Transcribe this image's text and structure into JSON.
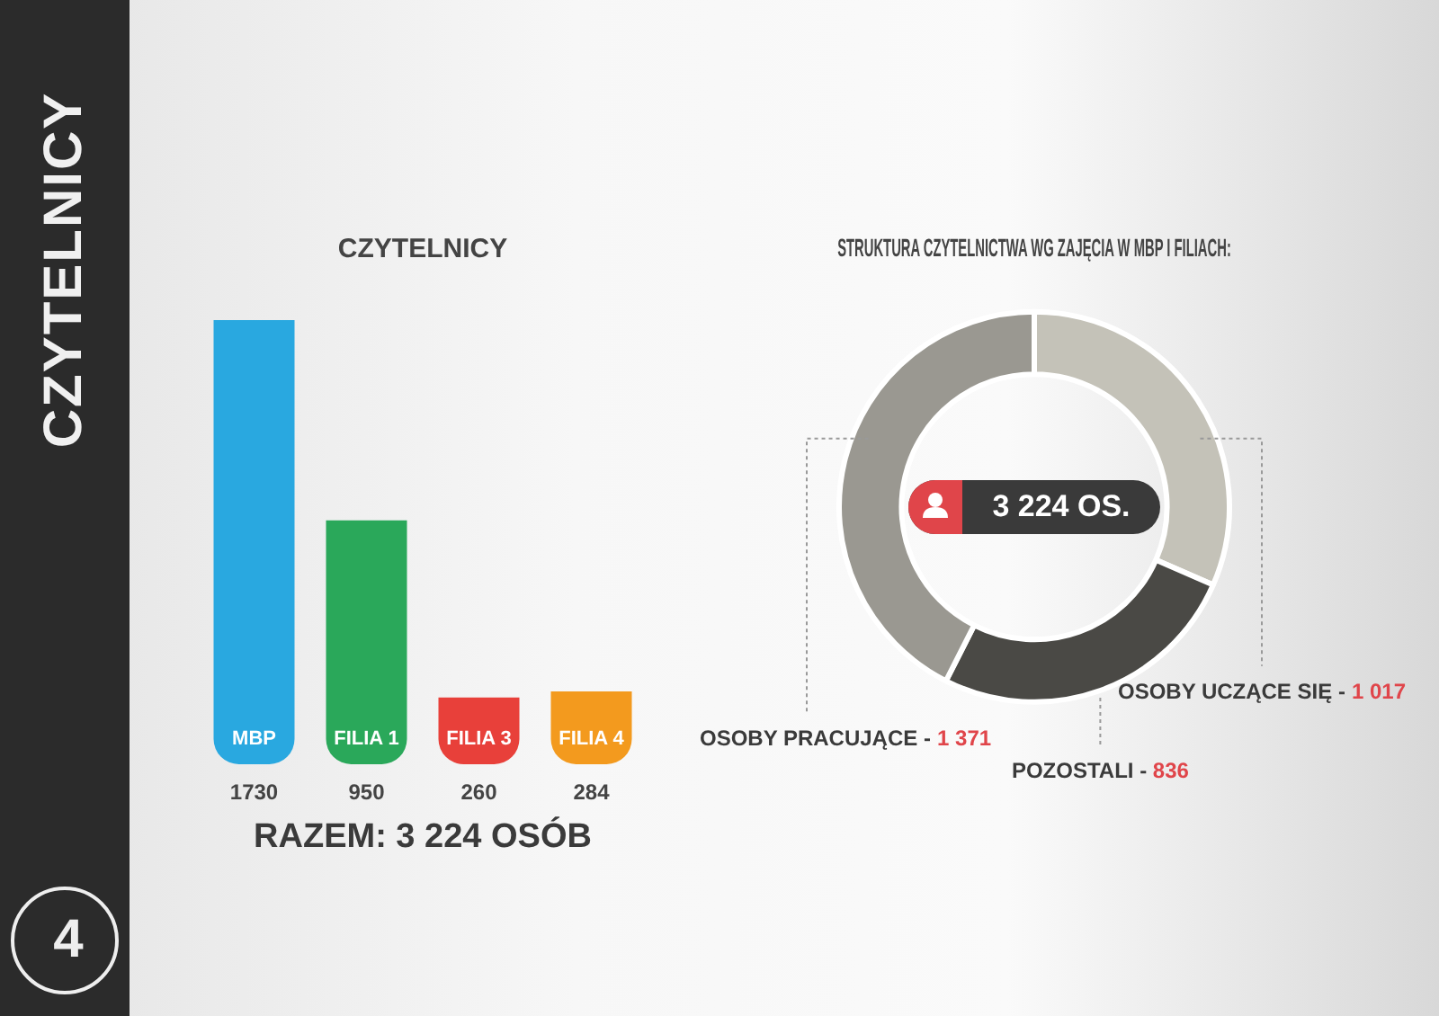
{
  "chart_data": [
    {
      "type": "bar",
      "title": "CZYTELNICY",
      "categories": [
        "MBP",
        "FILIA 1",
        "FILIA 3",
        "FILIA 4"
      ],
      "values": [
        1730,
        950,
        260,
        284
      ],
      "colors": [
        "#29a8e0",
        "#2aa85a",
        "#e8403a",
        "#f39a1e"
      ],
      "data_labels": true,
      "tick_labels": false,
      "legend": false,
      "annotations": [
        "RAZEM: 3 224 OSÓB",
        "CZYTELNICY",
        "4"
      ]
    },
    {
      "type": "donut",
      "title": "STRUKTURA CZYTELNICTWA WG ZAJĘCIA W MBP I FILIACH:",
      "categories": [
        "OSOBY UCZĄCE SIĘ -",
        "POZOSTALI -",
        "OSOBY PRACUJĄCE -"
      ],
      "values": [
        1017,
        836,
        1371
      ],
      "colors": [
        "#c4c2b8",
        "#4a4945",
        "#9a9891"
      ],
      "value_labels": [
        "1 017",
        "836",
        "1 371"
      ],
      "legend": false,
      "annotations": [
        "3 224 OS."
      ]
    }
  ]
}
